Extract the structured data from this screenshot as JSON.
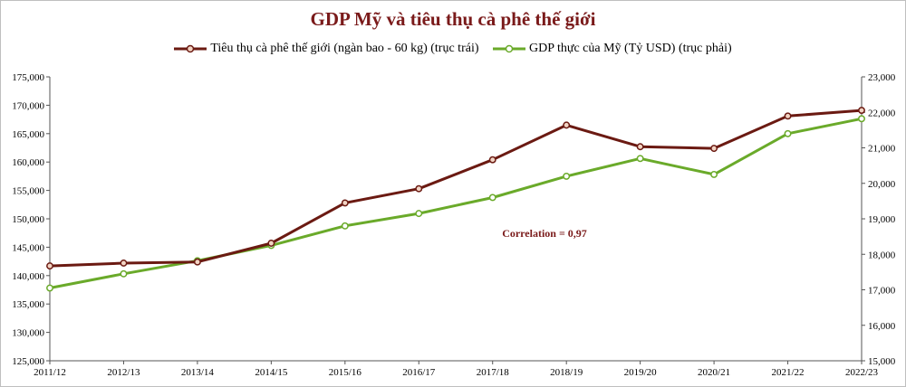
{
  "chart_data": {
    "type": "line",
    "title": "GDP Mỹ và tiêu thụ cà phê thế giới",
    "categories": [
      "2011/12",
      "2012/13",
      "2013/14",
      "2014/15",
      "2015/16",
      "2016/17",
      "2017/18",
      "2018/19",
      "2019/20",
      "2020/21",
      "2021/22",
      "2022/23"
    ],
    "series": [
      {
        "name": "Tiêu thụ cà phê thế giới (ngàn bao - 60 kg) (trục trái)",
        "axis": "left",
        "color": "#6b1a12",
        "values": [
          141700,
          142200,
          142400,
          145700,
          152800,
          155300,
          160400,
          166500,
          162700,
          162400,
          168100,
          169100
        ]
      },
      {
        "name": "GDP thực của Mỹ (Tỷ USD) (trục phải)",
        "axis": "right",
        "color": "#6aaa2a",
        "values": [
          17050,
          17450,
          17820,
          18250,
          18800,
          19150,
          19600,
          20200,
          20700,
          20250,
          21400,
          21820
        ]
      }
    ],
    "y_left": {
      "min": 125000,
      "max": 175000,
      "ticks": [
        "125,000",
        "130,000",
        "135,000",
        "140,000",
        "145,000",
        "150,000",
        "155,000",
        "160,000",
        "165,000",
        "170,000",
        "175,000"
      ]
    },
    "y_right": {
      "min": 15000,
      "max": 23000,
      "ticks": [
        "15,000",
        "16,000",
        "17,000",
        "18,000",
        "19,000",
        "20,000",
        "21,000",
        "22,000",
        "23,000"
      ]
    },
    "annotation": "Correlation = 0,97",
    "grid": false,
    "legend_position": "top"
  }
}
